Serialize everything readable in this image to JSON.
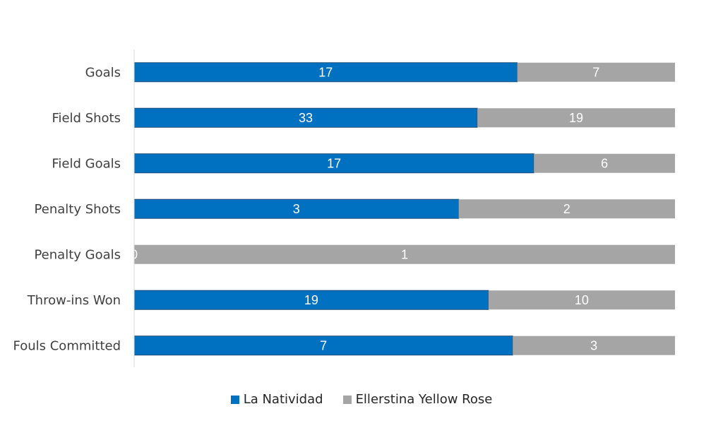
{
  "chart_data": {
    "type": "bar",
    "orientation": "horizontal",
    "stacked": "percent",
    "categories": [
      "Goals",
      "Field Shots",
      "Field Goals",
      "Penalty Shots",
      "Penalty Goals",
      "Throw-ins Won",
      "Fouls Committed"
    ],
    "series": [
      {
        "name": "La Natividad",
        "values": [
          17,
          33,
          17,
          3,
          0,
          19,
          7
        ],
        "color": "#0070C0"
      },
      {
        "name": "Ellerstina Yellow Rose",
        "values": [
          7,
          19,
          6,
          2,
          1,
          10,
          3
        ],
        "color": "#A5A5A5"
      }
    ],
    "xlim": [
      0,
      1
    ],
    "grid": false,
    "legend_position": "bottom"
  }
}
